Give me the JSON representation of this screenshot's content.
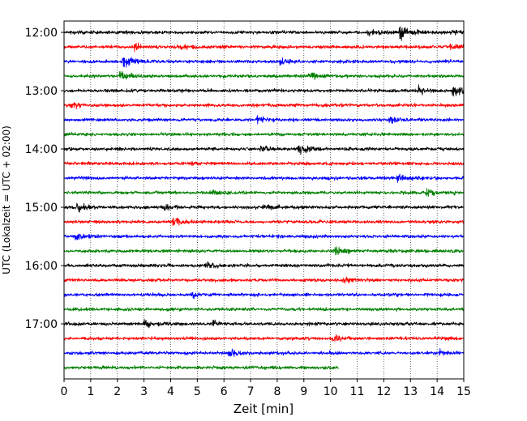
{
  "chart_data": {
    "type": "line",
    "title": "",
    "xlabel": "Zeit  [min]",
    "ylabel": "UTC (Lokalzeit = UTC + 02:00)",
    "xlim": [
      0,
      15
    ],
    "x_ticks": [
      "0",
      "1",
      "2",
      "3",
      "4",
      "5",
      "6",
      "7",
      "8",
      "9",
      "10",
      "11",
      "12",
      "13",
      "14",
      "15"
    ],
    "y_ticks": [
      "12:00",
      "13:00",
      "14:00",
      "15:00",
      "16:00",
      "17:00"
    ],
    "grid": "vertical dotted",
    "rows": [
      {
        "start": "12:00",
        "color": "#000000",
        "end_min": 15
      },
      {
        "start": "12:15",
        "color": "#ff0000",
        "end_min": 15
      },
      {
        "start": "12:30",
        "color": "#0000ff",
        "end_min": 15
      },
      {
        "start": "12:45",
        "color": "#008000",
        "end_min": 15
      },
      {
        "start": "13:00",
        "color": "#000000",
        "end_min": 15
      },
      {
        "start": "13:15",
        "color": "#ff0000",
        "end_min": 15
      },
      {
        "start": "13:30",
        "color": "#0000ff",
        "end_min": 15
      },
      {
        "start": "13:45",
        "color": "#008000",
        "end_min": 15
      },
      {
        "start": "14:00",
        "color": "#000000",
        "end_min": 15
      },
      {
        "start": "14:15",
        "color": "#ff0000",
        "end_min": 15
      },
      {
        "start": "14:30",
        "color": "#0000ff",
        "end_min": 15
      },
      {
        "start": "14:45",
        "color": "#008000",
        "end_min": 15
      },
      {
        "start": "15:00",
        "color": "#000000",
        "end_min": 15
      },
      {
        "start": "15:15",
        "color": "#ff0000",
        "end_min": 15
      },
      {
        "start": "15:30",
        "color": "#0000ff",
        "end_min": 15
      },
      {
        "start": "15:45",
        "color": "#008000",
        "end_min": 15
      },
      {
        "start": "16:00",
        "color": "#000000",
        "end_min": 15
      },
      {
        "start": "16:15",
        "color": "#ff0000",
        "end_min": 15
      },
      {
        "start": "16:30",
        "color": "#0000ff",
        "end_min": 15
      },
      {
        "start": "16:45",
        "color": "#008000",
        "end_min": 15
      },
      {
        "start": "17:00",
        "color": "#000000",
        "end_min": 15
      },
      {
        "start": "17:15",
        "color": "#ff0000",
        "end_min": 15
      },
      {
        "start": "17:30",
        "color": "#0000ff",
        "end_min": 15
      },
      {
        "start": "17:45",
        "color": "#008000",
        "end_min": 10.3
      }
    ],
    "events": [
      {
        "row": 0,
        "t": 12.6,
        "amp": 1.4
      },
      {
        "row": 0,
        "t": 11.4,
        "amp": 0.5
      },
      {
        "row": 0,
        "t": 14.5,
        "amp": 0.4
      },
      {
        "row": 1,
        "t": 2.6,
        "amp": 0.7
      },
      {
        "row": 1,
        "t": 4.4,
        "amp": 0.6
      },
      {
        "row": 1,
        "t": 14.5,
        "amp": 0.6
      },
      {
        "row": 2,
        "t": 2.2,
        "amp": 1.6
      },
      {
        "row": 2,
        "t": 8.1,
        "amp": 0.5
      },
      {
        "row": 3,
        "t": 2.1,
        "amp": 0.8
      },
      {
        "row": 3,
        "t": 9.2,
        "amp": 0.6
      },
      {
        "row": 4,
        "t": 13.3,
        "amp": 0.8
      },
      {
        "row": 4,
        "t": 14.6,
        "amp": 1.2
      },
      {
        "row": 5,
        "t": 0.3,
        "amp": 0.5
      },
      {
        "row": 6,
        "t": 7.2,
        "amp": 0.6
      },
      {
        "row": 6,
        "t": 12.2,
        "amp": 0.5
      },
      {
        "row": 8,
        "t": 8.8,
        "amp": 0.8
      },
      {
        "row": 8,
        "t": 7.4,
        "amp": 0.5
      },
      {
        "row": 10,
        "t": 12.5,
        "amp": 0.6
      },
      {
        "row": 11,
        "t": 5.5,
        "amp": 0.5
      },
      {
        "row": 11,
        "t": 13.6,
        "amp": 0.6
      },
      {
        "row": 12,
        "t": 0.5,
        "amp": 0.7
      },
      {
        "row": 12,
        "t": 3.7,
        "amp": 0.6
      },
      {
        "row": 12,
        "t": 7.5,
        "amp": 0.5
      },
      {
        "row": 13,
        "t": 4.1,
        "amp": 0.7
      },
      {
        "row": 14,
        "t": 0.4,
        "amp": 0.6
      },
      {
        "row": 15,
        "t": 10.2,
        "amp": 0.7
      },
      {
        "row": 16,
        "t": 5.3,
        "amp": 0.6
      },
      {
        "row": 17,
        "t": 10.5,
        "amp": 0.4
      },
      {
        "row": 18,
        "t": 4.8,
        "amp": 0.5
      },
      {
        "row": 20,
        "t": 3.0,
        "amp": 0.7
      },
      {
        "row": 20,
        "t": 5.6,
        "amp": 0.6
      },
      {
        "row": 21,
        "t": 10.1,
        "amp": 0.5
      },
      {
        "row": 22,
        "t": 6.2,
        "amp": 0.5
      },
      {
        "row": 22,
        "t": 14.1,
        "amp": 0.4
      }
    ]
  }
}
